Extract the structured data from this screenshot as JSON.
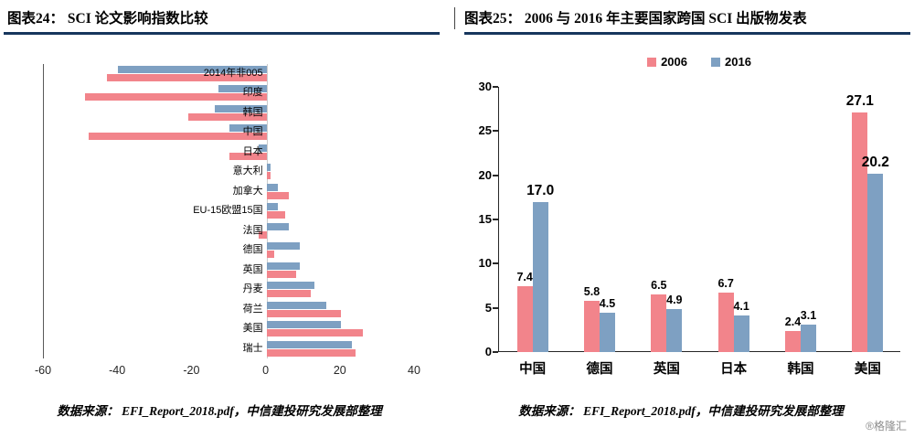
{
  "page": {
    "watermark": "®格隆汇"
  },
  "colors": {
    "pink": "#F2848B",
    "blue": "#7EA0C2",
    "header_rule": "#17365D"
  },
  "left_panel": {
    "title": "图表24：  SCI 论文影响指数比较",
    "source": "数据来源：  EFI_Report_2018.pdf，中信建投研究发展部整理"
  },
  "right_panel": {
    "title": "图表25：  2006 与 2016 年主要国家跨国 SCI 出版物发表",
    "source": "数据来源：  EFI_Report_2018.pdf，中信建投研究发展部整理"
  },
  "chart_data": [
    {
      "type": "bar",
      "orientation": "horizontal",
      "title": "SCI 论文影响指数比较",
      "categories": [
        "2014年非005",
        "印度",
        "韩国",
        "中国",
        "日本",
        "意大利",
        "加拿大",
        "EU-15欧盟15国",
        "法国",
        "德国",
        "英国",
        "丹麦",
        "荷兰",
        "美国",
        "瑞士"
      ],
      "series": [
        {
          "name": "series_blue",
          "color": "#7EA0C2",
          "values": [
            -40,
            -13,
            -14,
            -10,
            -2,
            1,
            3,
            3,
            6,
            9,
            9,
            13,
            16,
            20,
            23
          ]
        },
        {
          "name": "series_pink",
          "color": "#F2848B",
          "values": [
            -43,
            -49,
            -21,
            -48,
            -10,
            1,
            6,
            5,
            -2,
            2,
            8,
            12,
            20,
            26,
            24
          ]
        }
      ],
      "xlim": [
        -60,
        40
      ],
      "xticks": [
        -60,
        -40,
        -20,
        0,
        20,
        40
      ],
      "xlabel": "",
      "ylabel": "",
      "grid": false,
      "legend_position": "none"
    },
    {
      "type": "bar",
      "orientation": "vertical",
      "title": "2006 与 2016 年主要国家跨国 SCI 出版物发表",
      "categories": [
        "中国",
        "德国",
        "英国",
        "日本",
        "韩国",
        "美国"
      ],
      "series": [
        {
          "name": "2006",
          "color": "#F2848B",
          "values": [
            7.4,
            5.8,
            6.5,
            6.7,
            2.4,
            27.1
          ]
        },
        {
          "name": "2016",
          "color": "#7EA0C2",
          "values": [
            17.0,
            4.5,
            4.9,
            4.1,
            3.1,
            20.2
          ]
        }
      ],
      "labels": [
        [
          "7.4",
          "5.8",
          "6.5",
          "6.7",
          "2.4",
          "27.1"
        ],
        [
          "17.0",
          "4.5",
          "4.9",
          "4.1",
          "3.1",
          "20.2"
        ]
      ],
      "ylim": [
        0,
        30
      ],
      "yticks": [
        0,
        5,
        10,
        15,
        20,
        25,
        30
      ],
      "xlabel": "",
      "ylabel": "",
      "grid": false,
      "legend": [
        "2006",
        "2016"
      ],
      "legend_position": "top"
    }
  ]
}
